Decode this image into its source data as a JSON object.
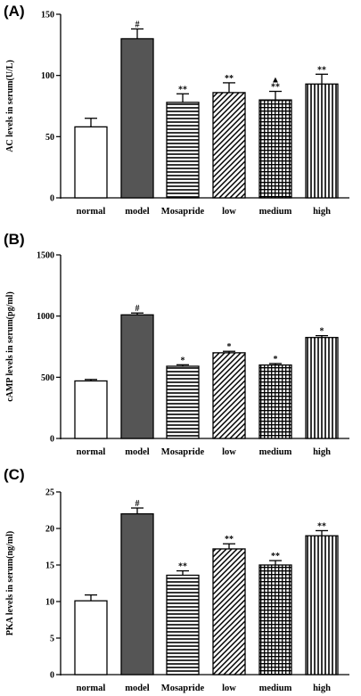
{
  "chart_data": [
    {
      "type": "bar",
      "panel_label": "(A)",
      "ylabel": "AC levels in serum(U/L)",
      "ylim": [
        0,
        150
      ],
      "yticks": [
        0,
        50,
        100,
        150
      ],
      "categories": [
        "normal",
        "model",
        "Mosapride",
        "low",
        "medium",
        "high"
      ],
      "values": [
        58,
        130,
        78,
        86,
        80,
        93
      ],
      "errors": [
        7,
        8,
        7,
        8,
        7,
        8
      ],
      "significance": [
        "",
        "#",
        "**",
        "**",
        "▲\n**",
        "**"
      ],
      "patterns": [
        "empty",
        "solid",
        "horizontal",
        "diagonal",
        "grid",
        "vertical"
      ]
    },
    {
      "type": "bar",
      "panel_label": "(B)",
      "ylabel": "cAMP levels in serum(pg/ml)",
      "ylim": [
        0,
        1500
      ],
      "yticks": [
        0,
        500,
        1000,
        1500
      ],
      "categories": [
        "normal",
        "model",
        "Mosapride",
        "low",
        "medium",
        "high"
      ],
      "values": [
        470,
        1010,
        590,
        700,
        600,
        825
      ],
      "errors": [
        12,
        15,
        12,
        12,
        12,
        15
      ],
      "significance": [
        "",
        "#",
        "*",
        "*",
        "*",
        "*"
      ],
      "patterns": [
        "empty",
        "solid",
        "horizontal",
        "diagonal",
        "grid",
        "vertical"
      ]
    },
    {
      "type": "bar",
      "panel_label": "(C)",
      "ylabel": "PKA levels in serum(ng/ml)",
      "ylim": [
        0,
        25
      ],
      "yticks": [
        0,
        5,
        10,
        15,
        20,
        25
      ],
      "categories": [
        "normal",
        "model",
        "Mosapride",
        "low",
        "medium",
        "high"
      ],
      "values": [
        10.1,
        22,
        13.6,
        17.2,
        15,
        19
      ],
      "errors": [
        0.8,
        0.8,
        0.6,
        0.7,
        0.6,
        0.7
      ],
      "significance": [
        "",
        "#",
        "**",
        "**",
        "**",
        "**"
      ],
      "patterns": [
        "empty",
        "solid",
        "horizontal",
        "diagonal",
        "grid",
        "vertical"
      ]
    }
  ],
  "colors": {
    "model_fill": "#555555",
    "stroke": "#000000"
  }
}
